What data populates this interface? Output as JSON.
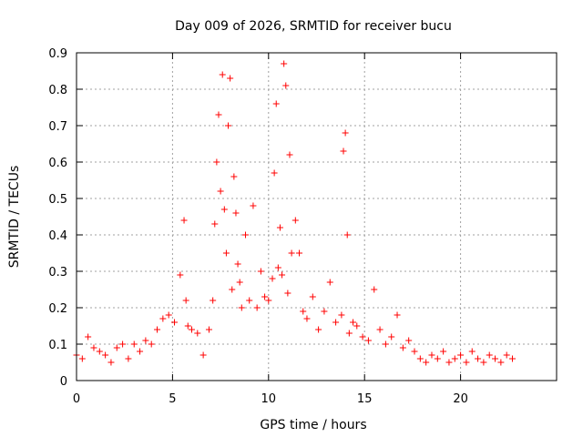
{
  "chart_data": {
    "type": "scatter",
    "title": "Day 009 of 2026, SRMTID for receiver bucu",
    "xlabel": "GPS time / hours",
    "ylabel": "SRMTID / TECUs",
    "xlim": [
      0,
      25
    ],
    "ylim": [
      0,
      0.9
    ],
    "xticks": [
      0,
      5,
      10,
      15,
      20
    ],
    "yticks": [
      0,
      0.1,
      0.2,
      0.3,
      0.4,
      0.5,
      0.6,
      0.7,
      0.8,
      0.9
    ],
    "xtick_labels": [
      "0",
      "5",
      "10",
      "15",
      "20"
    ],
    "ytick_labels": [
      "0",
      "0.1",
      "0.2",
      "0.3",
      "0.4",
      "0.5",
      "0.6",
      "0.7",
      "0.8",
      "0.9"
    ],
    "grid": true,
    "marker": "+",
    "marker_color": "#ff0000",
    "series": [
      {
        "name": "SRMTID",
        "x": [
          0.0,
          0.3,
          0.6,
          0.9,
          1.2,
          1.5,
          1.8,
          2.1,
          2.4,
          2.7,
          3.0,
          3.3,
          3.6,
          3.9,
          4.2,
          4.5,
          4.8,
          5.1,
          5.4,
          5.6,
          5.7,
          5.8,
          6.0,
          6.3,
          6.6,
          6.9,
          7.1,
          7.2,
          7.3,
          7.4,
          7.5,
          7.6,
          7.7,
          7.8,
          7.9,
          8.0,
          8.1,
          8.2,
          8.3,
          8.4,
          8.5,
          8.6,
          8.8,
          9.0,
          9.2,
          9.4,
          9.6,
          9.8,
          10.0,
          10.2,
          10.3,
          10.4,
          10.5,
          10.6,
          10.7,
          10.8,
          10.9,
          11.0,
          11.1,
          11.2,
          11.4,
          11.6,
          11.8,
          12.0,
          12.3,
          12.6,
          12.9,
          13.2,
          13.5,
          13.8,
          13.9,
          14.0,
          14.1,
          14.2,
          14.4,
          14.6,
          14.9,
          15.2,
          15.5,
          15.8,
          16.1,
          16.4,
          16.7,
          17.0,
          17.3,
          17.6,
          17.9,
          18.2,
          18.5,
          18.8,
          19.1,
          19.4,
          19.7,
          20.0,
          20.3,
          20.6,
          20.9,
          21.2,
          21.5,
          21.8,
          22.1,
          22.4,
          22.7
        ],
        "y": [
          0.07,
          0.06,
          0.12,
          0.09,
          0.08,
          0.07,
          0.05,
          0.09,
          0.1,
          0.06,
          0.1,
          0.08,
          0.11,
          0.1,
          0.14,
          0.17,
          0.18,
          0.16,
          0.29,
          0.44,
          0.22,
          0.15,
          0.14,
          0.13,
          0.07,
          0.14,
          0.22,
          0.43,
          0.6,
          0.73,
          0.52,
          0.84,
          0.47,
          0.35,
          0.7,
          0.83,
          0.25,
          0.56,
          0.46,
          0.32,
          0.27,
          0.2,
          0.4,
          0.22,
          0.48,
          0.2,
          0.3,
          0.23,
          0.22,
          0.28,
          0.57,
          0.76,
          0.31,
          0.42,
          0.29,
          0.87,
          0.81,
          0.24,
          0.62,
          0.35,
          0.44,
          0.35,
          0.19,
          0.17,
          0.23,
          0.14,
          0.19,
          0.27,
          0.16,
          0.18,
          0.63,
          0.68,
          0.4,
          0.13,
          0.16,
          0.15,
          0.12,
          0.11,
          0.25,
          0.14,
          0.1,
          0.12,
          0.18,
          0.09,
          0.11,
          0.08,
          0.06,
          0.05,
          0.07,
          0.06,
          0.08,
          0.05,
          0.06,
          0.07,
          0.05,
          0.08,
          0.06,
          0.05,
          0.07,
          0.06,
          0.05,
          0.07,
          0.06
        ]
      }
    ]
  }
}
